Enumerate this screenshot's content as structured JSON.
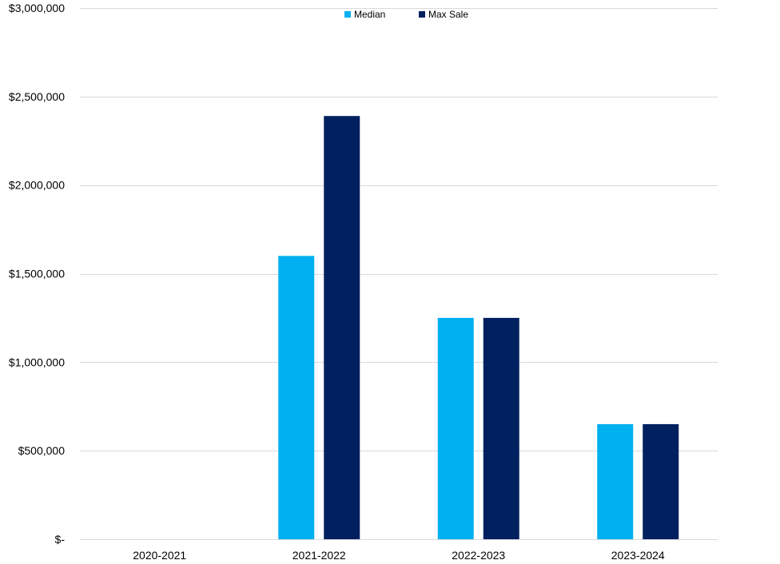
{
  "chart_data": {
    "type": "bar",
    "title": "",
    "xlabel": "",
    "ylabel": "",
    "categories": [
      "2020-2021",
      "2021-2022",
      "2022-2023",
      "2023-2024"
    ],
    "series": [
      {
        "name": "Median",
        "color": "#00b0f0",
        "values": [
          0,
          1600000,
          1250000,
          650000
        ]
      },
      {
        "name": "Max Sale",
        "color": "#002060",
        "values": [
          0,
          2390000,
          1250000,
          650000
        ]
      }
    ],
    "ylim": [
      0,
      3000000
    ],
    "yticks": [
      0,
      500000,
      1000000,
      1500000,
      2000000,
      2500000,
      3000000
    ],
    "ytick_labels": [
      "$-",
      "$500,000",
      "$1,000,000",
      "$1,500,000",
      "$2,000,000",
      "$2,500,000",
      "$3,000,000"
    ],
    "grid": true,
    "legend_position": "top-center"
  }
}
